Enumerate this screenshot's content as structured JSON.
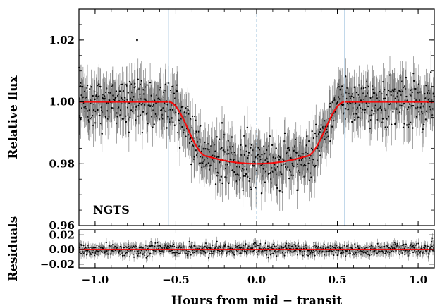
{
  "chart_data": {
    "type": "scatter",
    "panels": [
      {
        "id": "main",
        "ylabel": "Relative flux",
        "xlim": [
          -1.1,
          1.1
        ],
        "ylim": [
          0.96,
          1.03
        ],
        "yticks": [
          0.96,
          0.98,
          1.0,
          1.02
        ],
        "ytick_labels": [
          "0.96",
          "0.98",
          "1.00",
          "1.02"
        ],
        "annotation": "NGTS",
        "series": [
          {
            "kind": "points-with-errorbars",
            "color": "#000000",
            "errorbar_color": "#808080",
            "typical_error": 0.006,
            "scatter": 0.004,
            "n_points": 900,
            "outliers": [
              {
                "x": -0.74,
                "y": 1.02
              }
            ]
          },
          {
            "kind": "model-line",
            "color": "#ff0000",
            "baseline": 1.0,
            "min_flux": 0.98,
            "t14_hours": 1.09,
            "ingress_hours": 0.24
          }
        ],
        "vlines": [
          {
            "x": -0.545,
            "color": "#a8c8e0",
            "style": "solid"
          },
          {
            "x": 0.0,
            "color": "#a8c8e0",
            "style": "dashed"
          },
          {
            "x": 0.545,
            "color": "#a8c8e0",
            "style": "solid"
          }
        ]
      },
      {
        "id": "residuals",
        "ylabel": "Residuals",
        "xlim": [
          -1.1,
          1.1
        ],
        "ylim": [
          -0.025,
          0.027
        ],
        "yticks": [
          -0.02,
          0.0,
          0.02
        ],
        "ytick_labels": [
          "−0.02",
          "0.00",
          "0.02"
        ],
        "series": [
          {
            "kind": "points-with-errorbars",
            "color": "#000000",
            "errorbar_color": "#808080",
            "typical_error": 0.006,
            "scatter": 0.004,
            "n_points": 900
          },
          {
            "kind": "zero-line",
            "color": "#ff0000",
            "value": 0.0
          }
        ]
      }
    ],
    "x": {
      "label": "Hours from mid − transit",
      "ticks": [
        -1.0,
        -0.5,
        0.0,
        0.5,
        1.0
      ],
      "tick_labels": [
        "−1.0",
        "−0.5",
        "0.0",
        "0.5",
        "1.0"
      ]
    }
  }
}
